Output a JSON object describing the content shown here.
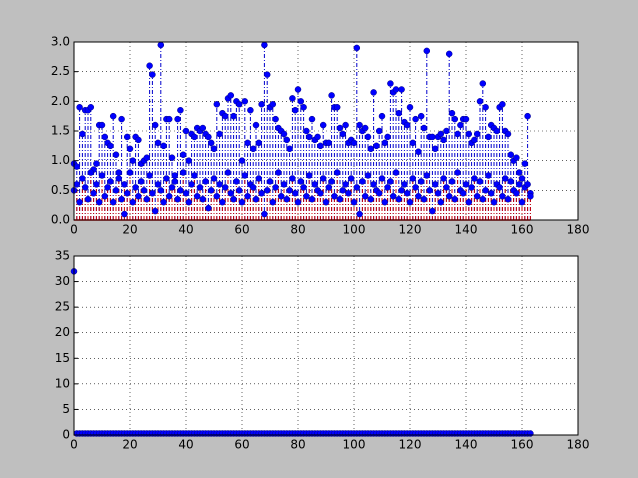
{
  "chart_data": [
    {
      "type": "stem",
      "xlim": [
        0,
        180
      ],
      "xticks": [
        0,
        20,
        40,
        60,
        80,
        100,
        120,
        140,
        160,
        180
      ],
      "ylim": [
        0,
        3
      ],
      "yticks": [
        {
          "value": 0,
          "label": "0.0"
        },
        {
          "value": 0.5,
          "label": "0.5"
        },
        {
          "value": 1,
          "label": "1.0"
        },
        {
          "value": 1.5,
          "label": "1.5"
        },
        {
          "value": 2,
          "label": "2.0"
        },
        {
          "value": 2.5,
          "label": "2.5"
        },
        {
          "value": 3,
          "label": "3.0"
        }
      ],
      "grid": true,
      "baseline_color": "#ff0000",
      "series": [
        {
          "color": "#0000ff",
          "stem_color": "#0000cc",
          "values": [
            0.95,
            0.9,
            1.9,
            1.45,
            1.85,
            1.85,
            1.9,
            0.85,
            0.95,
            1.6,
            1.6,
            1.4,
            1.3,
            1.25,
            1.75,
            1.1,
            0.8,
            1.7,
            0.1,
            1.4,
            1.2,
            1.0,
            1.4,
            1.35,
            0.95,
            1.0,
            1.05,
            2.6,
            2.45,
            1.6,
            1.3,
            2.95,
            1.25,
            1.7,
            1.7,
            1.05,
            0.75,
            1.7,
            1.85,
            1.1,
            1.5,
            1.0,
            1.45,
            1.4,
            1.55,
            1.5,
            1.55,
            1.45,
            1.4,
            1.3,
            1.2,
            1.95,
            1.45,
            1.8,
            1.75,
            2.05,
            2.1,
            1.75,
            2.0,
            1.95,
            1.0,
            2.0,
            1.3,
            1.85,
            1.2,
            1.6,
            1.3,
            1.95,
            2.95,
            2.45,
            1.9,
            1.95,
            1.7,
            1.55,
            1.5,
            1.45,
            1.35,
            1.2,
            2.05,
            1.85,
            2.2,
            2.0,
            1.9,
            1.5,
            1.4,
            1.7,
            1.35,
            1.4,
            1.25,
            1.6,
            1.3,
            1.3,
            2.1,
            1.9,
            1.9,
            1.55,
            1.45,
            1.6,
            1.3,
            1.35,
            1.3,
            2.9,
            1.6,
            1.5,
            1.55,
            1.4,
            1.2,
            2.15,
            1.25,
            1.5,
            1.75,
            1.3,
            1.4,
            2.3,
            2.15,
            2.2,
            1.8,
            2.2,
            1.65,
            1.6,
            1.9,
            1.3,
            1.7,
            1.15,
            1.75,
            1.55,
            2.85,
            1.4,
            1.4,
            1.2,
            1.4,
            1.45,
            1.35,
            1.5,
            2.8,
            1.8,
            1.7,
            1.45,
            1.6,
            1.7,
            1.7,
            1.45,
            1.3,
            1.35,
            1.45,
            2.0,
            2.3,
            1.9,
            1.4,
            1.6,
            1.55,
            1.5,
            1.9,
            1.95,
            1.5,
            1.45,
            1.1,
            1.0,
            1.05,
            0.6,
            0.7,
            0.95,
            1.75,
            0.45
          ]
        },
        {
          "color": "#0000ff",
          "stem_color": "#cc0000",
          "values": [
            0.5,
            0.6,
            0.3,
            0.7,
            0.55,
            0.35,
            0.8,
            0.45,
            0.6,
            0.3,
            0.75,
            0.4,
            0.55,
            0.65,
            0.3,
            0.5,
            0.7,
            0.35,
            0.6,
            0.45,
            0.8,
            0.3,
            0.55,
            0.4,
            0.65,
            0.5,
            0.35,
            0.75,
            0.45,
            0.15,
            0.6,
            0.5,
            0.3,
            0.7,
            0.4,
            0.55,
            0.65,
            0.35,
            0.5,
            0.8,
            0.45,
            0.3,
            0.6,
            0.75,
            0.4,
            0.55,
            0.35,
            0.65,
            0.2,
            0.5,
            0.7,
            0.4,
            0.6,
            0.3,
            0.55,
            0.8,
            0.45,
            0.35,
            0.65,
            0.5,
            0.3,
            0.75,
            0.4,
            0.6,
            0.55,
            0.35,
            0.7,
            0.45,
            0.1,
            0.5,
            0.65,
            0.3,
            0.55,
            0.8,
            0.4,
            0.6,
            0.35,
            0.5,
            0.7,
            0.45,
            0.3,
            0.65,
            0.55,
            0.4,
            0.75,
            0.35,
            0.6,
            0.5,
            0.45,
            0.7,
            0.3,
            0.55,
            0.65,
            0.4,
            0.8,
            0.35,
            0.5,
            0.6,
            0.45,
            0.7,
            0.3,
            0.55,
            0.1,
            0.65,
            0.4,
            0.75,
            0.35,
            0.6,
            0.5,
            0.45,
            0.7,
            0.3,
            0.55,
            0.65,
            0.4,
            0.8,
            0.35,
            0.5,
            0.6,
            0.45,
            0.3,
            0.7,
            0.55,
            0.4,
            0.65,
            0.35,
            0.75,
            0.5,
            0.15,
            0.6,
            0.45,
            0.3,
            0.7,
            0.55,
            0.4,
            0.65,
            0.35,
            0.8,
            0.5,
            0.45,
            0.6,
            0.3,
            0.55,
            0.7,
            0.4,
            0.65,
            0.35,
            0.5,
            0.75,
            0.45,
            0.3,
            0.6,
            0.55,
            0.4,
            0.7,
            0.35,
            0.65,
            0.5,
            0.45,
            0.8,
            0.3,
            0.55,
            0.6,
            0.4
          ]
        }
      ]
    },
    {
      "type": "stem",
      "xlim": [
        0,
        180
      ],
      "xticks": [
        0,
        20,
        40,
        60,
        80,
        100,
        120,
        140,
        160,
        180
      ],
      "ylim": [
        0,
        35
      ],
      "yticks": [
        0,
        5,
        10,
        15,
        20,
        25,
        30,
        35
      ],
      "grid": true,
      "baseline_color": "#ff0000",
      "series": [
        {
          "color": "#0000ff",
          "stem_color": "#0000cc",
          "values": [
            32,
            0.3,
            0.3,
            0.3,
            0.3,
            0.3,
            0.3,
            0.3,
            0.3,
            0.3,
            0.3,
            0.3,
            0.3,
            0.3,
            0.3,
            0.3,
            0.3,
            0.3,
            0.3,
            0.3,
            0.3,
            0.3,
            0.3,
            0.3,
            0.3,
            0.3,
            0.3,
            0.3,
            0.3,
            0.3,
            0.3,
            0.3,
            0.3,
            0.3,
            0.3,
            0.3,
            0.3,
            0.3,
            0.3,
            0.3,
            0.3,
            0.3,
            0.3,
            0.3,
            0.3,
            0.3,
            0.3,
            0.3,
            0.3,
            0.3,
            0.3,
            0.3,
            0.3,
            0.3,
            0.3,
            0.3,
            0.3,
            0.3,
            0.3,
            0.3,
            0.3,
            0.3,
            0.3,
            0.3,
            0.3,
            0.3,
            0.3,
            0.3,
            0.3,
            0.3,
            0.3,
            0.3,
            0.3,
            0.3,
            0.3,
            0.3,
            0.3,
            0.3,
            0.3,
            0.3,
            0.3,
            0.3,
            0.3,
            0.3,
            0.3,
            0.3,
            0.3,
            0.3,
            0.3,
            0.3,
            0.3,
            0.3,
            0.3,
            0.3,
            0.3,
            0.3,
            0.3,
            0.3,
            0.3,
            0.3,
            0.3,
            0.3,
            0.3,
            0.3,
            0.3,
            0.3,
            0.3,
            0.3,
            0.3,
            0.3,
            0.3,
            0.3,
            0.3,
            0.3,
            0.3,
            0.3,
            0.3,
            0.3,
            0.3,
            0.3,
            0.3,
            0.3,
            0.3,
            0.3,
            0.3,
            0.3,
            0.3,
            0.3,
            0.3,
            0.3,
            0.3,
            0.3,
            0.3,
            0.3,
            0.3,
            0.3,
            0.3,
            0.3,
            0.3,
            0.3,
            0.3,
            0.3,
            0.3,
            0.3,
            0.3,
            0.3,
            0.3,
            0.3,
            0.3,
            0.3,
            0.3,
            0.3,
            0.3,
            0.3,
            0.3,
            0.3,
            0.3,
            0.3,
            0.3,
            0.3,
            0.3,
            0.3,
            0.3,
            0.3
          ]
        }
      ]
    }
  ]
}
